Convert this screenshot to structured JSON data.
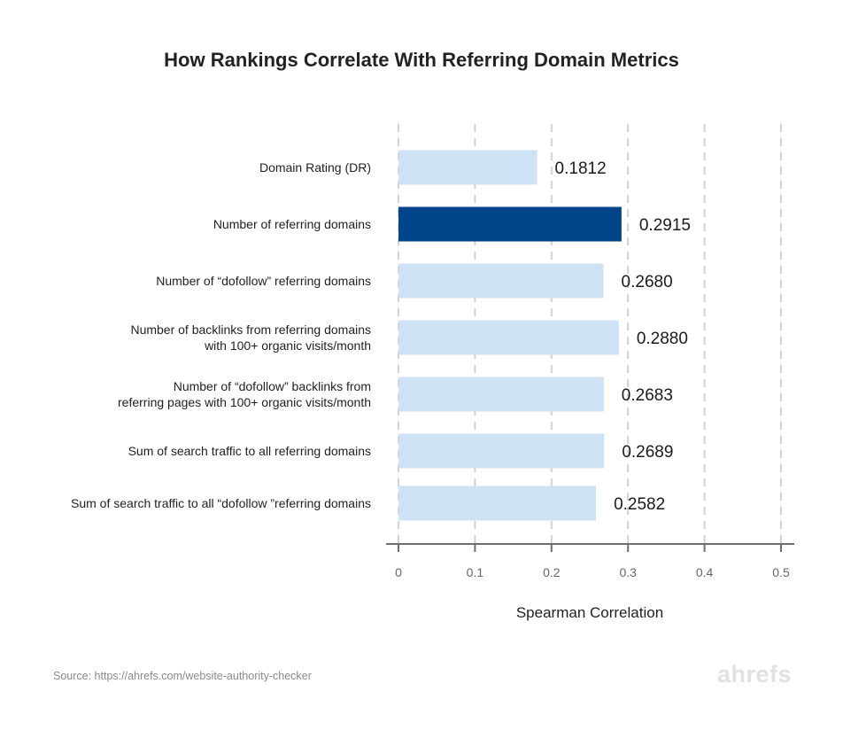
{
  "chart_data": {
    "type": "bar",
    "orientation": "horizontal",
    "title": "How Rankings Correlate With Referring Domain Metrics",
    "xlabel": "Spearman Correlation",
    "ylabel": "",
    "categories": [
      [
        "Domain Rating (DR)"
      ],
      [
        "Number of referring domains"
      ],
      [
        "Number of “dofollow” referring domains"
      ],
      [
        "Number of backlinks from referring domains",
        "with 100+ organic visits/month"
      ],
      [
        "Number of “dofollow” backlinks from",
        "referring pages with 100+ organic visits/month"
      ],
      [
        "Sum of search traffic to all referring domains"
      ],
      [
        "Sum of search traffic to all “dofollow ”referring domains"
      ]
    ],
    "values": [
      0.1812,
      0.2915,
      0.268,
      0.288,
      0.2683,
      0.2689,
      0.2582
    ],
    "value_labels": [
      "0.1812",
      "0.2915",
      "0.2680",
      "0.2880",
      "0.2683",
      "0.2689",
      "0.2582"
    ],
    "highlight_index": 1,
    "xlim": [
      0,
      0.5
    ],
    "xticks": [
      0,
      0.1,
      0.2,
      0.3,
      0.4,
      0.5
    ],
    "xtick_labels": [
      "0",
      "0.1",
      "0.2",
      "0.3",
      "0.4",
      "0.5"
    ],
    "grid": "vertical dashed",
    "legend": "none",
    "colors": {
      "bar": "#cde3f5",
      "highlight_bar": "#00448a",
      "grid": "#d2d2d2",
      "axis": "#6e6e6e"
    }
  },
  "source": "Source: https://ahrefs.com/website-authority-checker",
  "brand": "ahrefs"
}
